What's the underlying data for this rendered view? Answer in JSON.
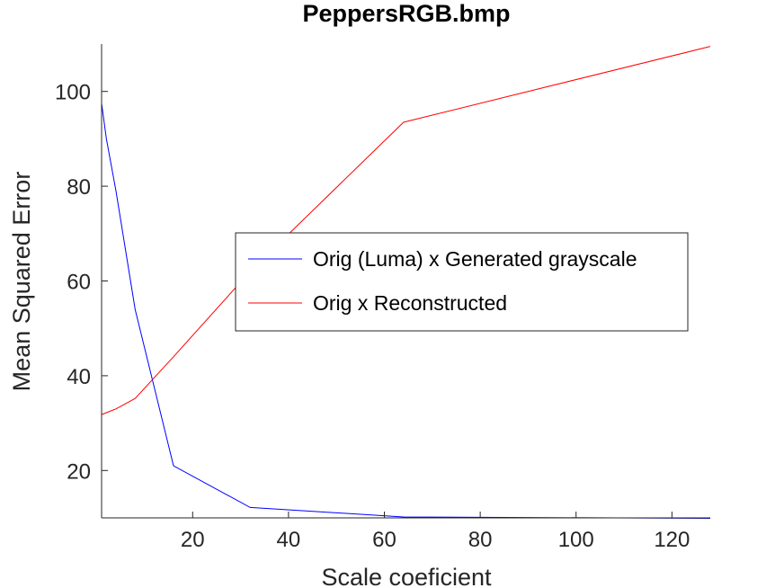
{
  "chart_data": {
    "type": "line",
    "title": "PeppersRGB.bmp",
    "xlabel": "Scale coeficient",
    "ylabel": "Mean Squared Error",
    "xlim": [
      1,
      128
    ],
    "ylim": [
      10,
      110
    ],
    "xticks": [
      20,
      40,
      60,
      80,
      100,
      120
    ],
    "yticks": [
      20,
      40,
      60,
      80,
      100
    ],
    "grid": false,
    "legend_position": "center-right",
    "series": [
      {
        "name": "Orig (Luma) x Generated grayscale",
        "color": "#0000ff",
        "x": [
          1,
          2,
          4,
          8,
          16,
          32,
          64,
          128
        ],
        "y": [
          97.5,
          90,
          79,
          54,
          21,
          12.2,
          10.2,
          9.9
        ]
      },
      {
        "name": "Orig x Reconstructed",
        "color": "#ff0000",
        "x": [
          1,
          2,
          4,
          8,
          16,
          32,
          64,
          128
        ],
        "y": [
          31.8,
          32.2,
          33,
          35.2,
          44,
          62,
          93.5,
          109.5
        ]
      }
    ]
  }
}
